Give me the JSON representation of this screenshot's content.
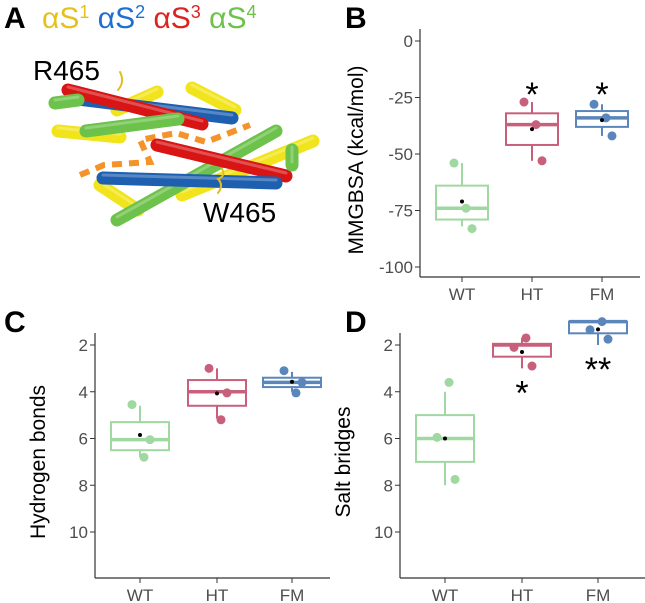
{
  "panels": {
    "a": "A",
    "b": "B",
    "c": "C",
    "d": "D"
  },
  "structure": {
    "legend": [
      {
        "base": "αS",
        "sup": "1",
        "color": "#e6c11e"
      },
      {
        "base": "αS",
        "sup": "2",
        "color": "#1e6fd0"
      },
      {
        "base": "αS",
        "sup": "3",
        "color": "#dd2222"
      },
      {
        "base": "αS",
        "sup": "4",
        "color": "#6cc24a"
      }
    ],
    "residue_labels": [
      "R465",
      "W465"
    ],
    "helix_colors": {
      "yellow": "#f2e41c",
      "blue": "#1f5fb0",
      "red": "#d81414",
      "green": "#6cc24a",
      "dash": "#f5922a"
    }
  },
  "group_colors": {
    "WT": "#9fd8a0",
    "HT": "#c8607c",
    "FM": "#5b86bb"
  },
  "chart_data": [
    {
      "id": "b",
      "type": "boxplot",
      "ylabel": "MMGBSA (kcal/mol)",
      "xlabel": "",
      "categories": [
        "WT",
        "HT",
        "FM"
      ],
      "ylim": [
        -100,
        0
      ],
      "yticks": [
        0,
        -25,
        -50,
        -75,
        -100
      ],
      "ytick_labels": [
        "0",
        "-25",
        "-50",
        "-75",
        "-100"
      ],
      "boxes": [
        {
          "q1": -79,
          "median": -74,
          "q3": -64,
          "whisker_low": -82,
          "whisker_high": -54,
          "mean": -71,
          "points": [
            -54,
            -74,
            -83
          ]
        },
        {
          "q1": -46,
          "median": -37,
          "q3": -32,
          "whisker_low": -53,
          "whisker_high": -27,
          "mean": -39,
          "points": [
            -27,
            -37,
            -53
          ]
        },
        {
          "q1": -38,
          "median": -34,
          "q3": -31,
          "whisker_low": -42,
          "whisker_high": -28,
          "mean": -35,
          "points": [
            -28,
            -34,
            -42
          ]
        }
      ],
      "significance": [
        {
          "category": "HT",
          "label": "*",
          "y": -19
        },
        {
          "category": "FM",
          "label": "*",
          "y": -19
        }
      ]
    },
    {
      "id": "c",
      "type": "boxplot",
      "ylabel": "Hydrogen bonds",
      "xlabel": "",
      "categories": [
        "WT",
        "HT",
        "FM"
      ],
      "ylim": [
        0,
        10
      ],
      "yticks": [
        2,
        4,
        6,
        8,
        10
      ],
      "ytick_labels": [
        "2",
        "4",
        "6",
        "8",
        "10"
      ],
      "boxes": [
        {
          "q1": 5.3,
          "median": 6.05,
          "q3": 6.5,
          "whisker_low": 4.6,
          "whisker_high": 6.8,
          "mean": 5.85,
          "points": [
            6.8,
            6.05,
            4.55
          ]
        },
        {
          "q1": 3.5,
          "median": 4.0,
          "q3": 4.6,
          "whisker_low": 3.0,
          "whisker_high": 5.15,
          "mean": 4.07,
          "points": [
            5.2,
            4.05,
            3.0
          ]
        },
        {
          "q1": 3.4,
          "median": 3.6,
          "q3": 3.8,
          "whisker_low": 3.15,
          "whisker_high": 4.0,
          "mean": 3.57,
          "points": [
            4.05,
            3.6,
            3.1
          ]
        }
      ],
      "significance": []
    },
    {
      "id": "d",
      "type": "boxplot",
      "ylabel": "Salt bridges",
      "xlabel": "",
      "categories": [
        "WT",
        "HT",
        "FM"
      ],
      "ylim": [
        0,
        10
      ],
      "yticks": [
        2,
        4,
        6,
        8,
        10
      ],
      "ytick_labels": [
        "2",
        "4",
        "6",
        "8",
        "10"
      ],
      "boxes": [
        {
          "q1": 5.0,
          "median": 6.0,
          "q3": 7.0,
          "whisker_low": 4.0,
          "whisker_high": 8.0,
          "mean": 6.0,
          "points": [
            7.75,
            5.95,
            3.6
          ]
        },
        {
          "q1": 1.95,
          "median": 2.0,
          "q3": 2.5,
          "whisker_low": 1.7,
          "whisker_high": 3.0,
          "mean": 2.3,
          "points": [
            2.9,
            2.1,
            1.7
          ]
        },
        {
          "q1": 1.0,
          "median": 1.0,
          "q3": 1.5,
          "whisker_low": 1.0,
          "whisker_high": 2.0,
          "mean": 1.33,
          "points": [
            1.75,
            1.35,
            1.0
          ]
        }
      ],
      "significance": [
        {
          "category": "HT",
          "label": "*",
          "y": 3.6
        },
        {
          "category": "FM",
          "label": "**",
          "y": 2.6
        }
      ]
    }
  ]
}
